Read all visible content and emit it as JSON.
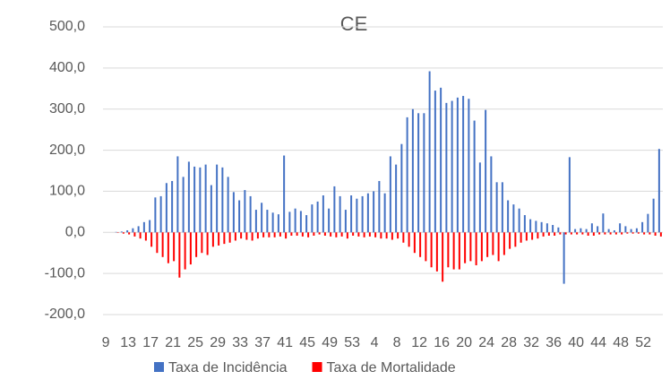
{
  "chart_data": {
    "type": "bar",
    "title": "CE",
    "categories": [
      "9",
      null,
      null,
      null,
      "13",
      null,
      null,
      null,
      "17",
      null,
      null,
      null,
      "21",
      null,
      null,
      null,
      "25",
      null,
      null,
      null,
      "29",
      null,
      null,
      null,
      "33",
      null,
      null,
      null,
      "37",
      null,
      null,
      null,
      "41",
      null,
      null,
      null,
      "45",
      null,
      null,
      null,
      "49",
      null,
      null,
      null,
      "53",
      null,
      null,
      null,
      "4",
      null,
      null,
      null,
      "8",
      null,
      null,
      null,
      "12",
      null,
      null,
      null,
      "16",
      null,
      null,
      null,
      "20",
      null,
      null,
      null,
      "24",
      null,
      null,
      null,
      "28",
      null,
      null,
      null,
      "32",
      null,
      null,
      null,
      "36",
      null,
      null,
      null,
      "40",
      null,
      null,
      null,
      "44",
      null,
      null,
      null,
      "48",
      null,
      null,
      null,
      "52",
      null,
      null,
      null
    ],
    "series": [
      {
        "name": "Taxa de Incidência",
        "color": "#4472c4",
        "values": [
          0,
          0,
          1,
          2,
          5,
          10,
          15,
          25,
          30,
          85,
          88,
          120,
          125,
          185,
          135,
          172,
          160,
          158,
          165,
          115,
          165,
          158,
          135,
          98,
          78,
          103,
          88,
          55,
          72,
          55,
          48,
          44,
          187,
          50,
          58,
          52,
          42,
          68,
          75,
          90,
          58,
          112,
          88,
          55,
          90,
          82,
          88,
          95,
          100,
          125,
          95,
          185,
          165,
          215,
          280,
          300,
          290,
          290,
          392,
          345,
          352,
          315,
          320,
          328,
          332,
          325,
          272,
          170,
          298,
          185,
          122,
          122,
          78,
          68,
          58,
          42,
          32,
          28,
          25,
          22,
          18,
          12,
          -125,
          183,
          8,
          10,
          8,
          22,
          15,
          46,
          8,
          5,
          22,
          15,
          8,
          10,
          25,
          45,
          82,
          203
        ]
      },
      {
        "name": "Taxa de Mortalidade",
        "color": "#ff0000",
        "values": [
          0,
          0,
          -1,
          -3,
          -5,
          -10,
          -15,
          -20,
          -35,
          -50,
          -60,
          -75,
          -70,
          -110,
          -90,
          -78,
          -60,
          -50,
          -55,
          -35,
          -32,
          -28,
          -25,
          -20,
          -15,
          -18,
          -20,
          -15,
          -12,
          -12,
          -12,
          -10,
          -15,
          -8,
          -8,
          -10,
          -12,
          -8,
          -5,
          -8,
          -10,
          -12,
          -10,
          -15,
          -8,
          -10,
          -12,
          -10,
          -12,
          -15,
          -15,
          -18,
          -15,
          -25,
          -35,
          -50,
          -60,
          -70,
          -85,
          -95,
          -120,
          -85,
          -90,
          -90,
          -75,
          -70,
          -80,
          -70,
          -60,
          -55,
          -70,
          -55,
          -40,
          -35,
          -25,
          -20,
          -18,
          -15,
          -10,
          -8,
          -8,
          -5,
          -5,
          -5,
          -5,
          -5,
          -8,
          -8,
          -5,
          -5,
          -5,
          -5,
          -5,
          -3,
          -3,
          -3,
          -5,
          -5,
          -8,
          -10
        ]
      }
    ],
    "ylim": [
      -200,
      500
    ],
    "yticks": [
      {
        "value": -200,
        "label": "-200,0"
      },
      {
        "value": -100,
        "label": "-100,0"
      },
      {
        "value": 0,
        "label": "0,0"
      },
      {
        "value": 100,
        "label": "100,0"
      },
      {
        "value": 200,
        "label": "200,0"
      },
      {
        "value": 300,
        "label": "300,0"
      },
      {
        "value": 400,
        "label": "400,0"
      },
      {
        "value": 500,
        "label": "500,0"
      }
    ],
    "grid": true,
    "legend": "bottom"
  }
}
